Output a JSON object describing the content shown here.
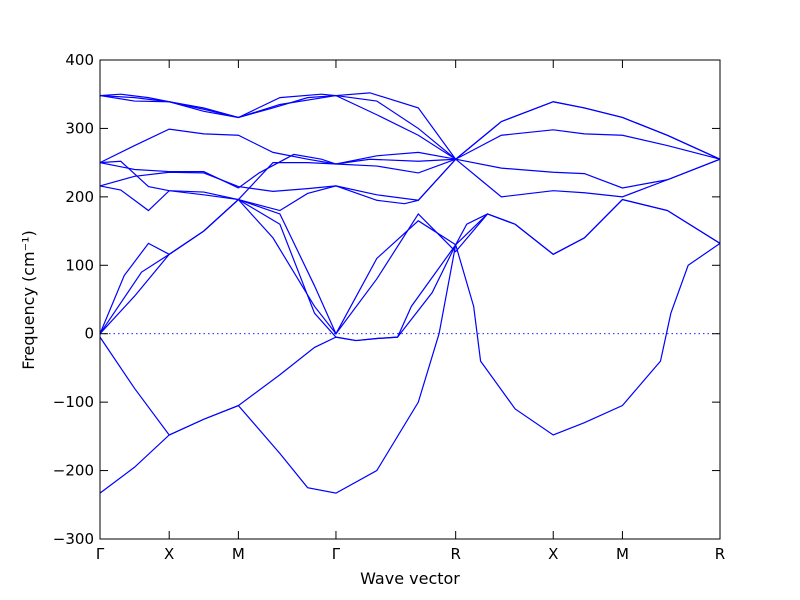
{
  "chart_data": {
    "type": "line",
    "xlabel": "Wave vector",
    "ylabel": "Frequency (cm⁻¹)",
    "ylim": [
      -300,
      400
    ],
    "yticks": [
      -300,
      -200,
      -100,
      0,
      100,
      200,
      300,
      400
    ],
    "xlim": [
      0,
      8.96
    ],
    "x_ticks": [
      {
        "label": "Γ",
        "pos": 0
      },
      {
        "label": "X",
        "pos": 1
      },
      {
        "label": "M",
        "pos": 2
      },
      {
        "label": "Γ",
        "pos": 3.41
      },
      {
        "label": "R",
        "pos": 5.14
      },
      {
        "label": "X",
        "pos": 6.55
      },
      {
        "label": "M",
        "pos": 7.55
      },
      {
        "label": "R",
        "pos": 8.96
      }
    ],
    "zero_line": true,
    "series_color": "#0000ff",
    "series": [
      {
        "points": [
          [
            0,
            348
          ],
          [
            0.5,
            345
          ],
          [
            1,
            339
          ],
          [
            1.5,
            330
          ],
          [
            2,
            316
          ],
          [
            2.5,
            330
          ],
          [
            3.0,
            345
          ],
          [
            3.41,
            348
          ],
          [
            4.0,
            340
          ],
          [
            4.6,
            300
          ],
          [
            5.14,
            255
          ],
          [
            5.8,
            310
          ],
          [
            6.55,
            339
          ],
          [
            7.0,
            330
          ],
          [
            7.55,
            316
          ],
          [
            8.2,
            290
          ],
          [
            8.96,
            255
          ]
        ]
      },
      {
        "points": [
          [
            0,
            348
          ],
          [
            0.3,
            350
          ],
          [
            0.7,
            345
          ],
          [
            1,
            339
          ],
          [
            1.5,
            328
          ],
          [
            2,
            316
          ],
          [
            2.6,
            345
          ],
          [
            3.2,
            350
          ],
          [
            3.41,
            348
          ],
          [
            3.9,
            352
          ],
          [
            4.6,
            330
          ],
          [
            5.14,
            255
          ],
          [
            5.8,
            310
          ],
          [
            6.55,
            339
          ],
          [
            7.0,
            330
          ],
          [
            7.55,
            316
          ],
          [
            8.2,
            290
          ],
          [
            8.96,
            255
          ]
        ]
      },
      {
        "points": [
          [
            0,
            348
          ],
          [
            0.5,
            340
          ],
          [
            1,
            339
          ],
          [
            1.5,
            325
          ],
          [
            2,
            316
          ],
          [
            2.6,
            335
          ],
          [
            3.41,
            348
          ],
          [
            4.0,
            320
          ],
          [
            4.6,
            290
          ],
          [
            5.14,
            255
          ],
          [
            5.8,
            290
          ],
          [
            6.55,
            298
          ],
          [
            7.0,
            292
          ],
          [
            7.55,
            290
          ],
          [
            8.2,
            275
          ],
          [
            8.96,
            255
          ]
        ]
      },
      {
        "points": [
          [
            0,
            250
          ],
          [
            0.5,
            275
          ],
          [
            1,
            299
          ],
          [
            1.5,
            292
          ],
          [
            2,
            290
          ],
          [
            2.5,
            265
          ],
          [
            3.0,
            255
          ],
          [
            3.41,
            248
          ],
          [
            4.0,
            260
          ],
          [
            4.6,
            265
          ],
          [
            5.14,
            255
          ],
          [
            5.8,
            242
          ],
          [
            6.55,
            236
          ],
          [
            7.0,
            234
          ],
          [
            7.55,
            213
          ],
          [
            8.2,
            225
          ],
          [
            8.96,
            255
          ]
        ]
      },
      {
        "points": [
          [
            0,
            250
          ],
          [
            0.5,
            240
          ],
          [
            1,
            237
          ],
          [
            1.5,
            237
          ],
          [
            2,
            213
          ],
          [
            2.3,
            235
          ],
          [
            2.8,
            262
          ],
          [
            3.2,
            255
          ],
          [
            3.41,
            248
          ],
          [
            3.9,
            255
          ],
          [
            4.6,
            252
          ],
          [
            5.14,
            255
          ],
          [
            5.5,
            225
          ],
          [
            5.8,
            200
          ],
          [
            6.55,
            209
          ],
          [
            7.0,
            206
          ],
          [
            7.55,
            200
          ],
          [
            8.2,
            225
          ],
          [
            8.96,
            255
          ]
        ]
      },
      {
        "points": [
          [
            0,
            250
          ],
          [
            0.3,
            252
          ],
          [
            0.7,
            215
          ],
          [
            1,
            209
          ],
          [
            1.5,
            207
          ],
          [
            2,
            196
          ],
          [
            2.5,
            250
          ],
          [
            3.0,
            250
          ],
          [
            3.41,
            248
          ],
          [
            4.0,
            245
          ],
          [
            4.6,
            235
          ],
          [
            5.14,
            255
          ]
        ]
      },
      {
        "points": [
          [
            0,
            216
          ],
          [
            0.5,
            230
          ],
          [
            1,
            236
          ],
          [
            1.5,
            235
          ],
          [
            2,
            215
          ],
          [
            2.5,
            208
          ],
          [
            3.0,
            212
          ],
          [
            3.41,
            216
          ],
          [
            4.0,
            203
          ],
          [
            4.6,
            195
          ],
          [
            5.14,
            255
          ]
        ]
      },
      {
        "points": [
          [
            0,
            216
          ],
          [
            0.3,
            210
          ],
          [
            0.7,
            180
          ],
          [
            1,
            209
          ],
          [
            1.5,
            203
          ],
          [
            2,
            196
          ],
          [
            2.6,
            180
          ],
          [
            3.0,
            205
          ],
          [
            3.41,
            216
          ],
          [
            4.0,
            195
          ],
          [
            4.4,
            190
          ],
          [
            4.6,
            195
          ],
          [
            5.14,
            255
          ]
        ]
      },
      {
        "points": [
          [
            0,
            0
          ],
          [
            0.35,
            85
          ],
          [
            0.7,
            132
          ],
          [
            1,
            116
          ],
          [
            1.5,
            150
          ],
          [
            2,
            196
          ],
          [
            2.6,
            175
          ],
          [
            3.1,
            70
          ],
          [
            3.41,
            0
          ],
          [
            4.0,
            110
          ],
          [
            4.6,
            165
          ],
          [
            5.14,
            130
          ],
          [
            5.4,
            40
          ],
          [
            5.5,
            -40
          ],
          [
            6.0,
            -110
          ],
          [
            6.55,
            -148
          ],
          [
            7.0,
            -130
          ],
          [
            7.55,
            -105
          ],
          [
            8.1,
            -40
          ],
          [
            8.25,
            30
          ],
          [
            8.5,
            100
          ],
          [
            8.96,
            132
          ]
        ]
      },
      {
        "points": [
          [
            0,
            0
          ],
          [
            0.5,
            55
          ],
          [
            1,
            116
          ],
          [
            1.5,
            150
          ],
          [
            2,
            196
          ],
          [
            2.5,
            140
          ],
          [
            3.1,
            40
          ],
          [
            3.41,
            0
          ],
          [
            4.0,
            80
          ],
          [
            4.6,
            175
          ],
          [
            5.14,
            120
          ],
          [
            5.6,
            175
          ],
          [
            6.0,
            160
          ],
          [
            6.55,
            116
          ],
          [
            7.0,
            140
          ],
          [
            7.55,
            196
          ],
          [
            8.2,
            180
          ],
          [
            8.96,
            132
          ]
        ]
      },
      {
        "points": [
          [
            0,
            0
          ],
          [
            0.6,
            90
          ],
          [
            1,
            116
          ],
          [
            1.5,
            150
          ],
          [
            2,
            196
          ],
          [
            2.6,
            160
          ],
          [
            3.1,
            30
          ],
          [
            3.41,
            -5
          ],
          [
            3.7,
            -10
          ],
          [
            4.0,
            -7
          ],
          [
            4.3,
            -5
          ],
          [
            4.5,
            40
          ],
          [
            5.14,
            130
          ],
          [
            5.6,
            175
          ],
          [
            6.0,
            160
          ],
          [
            6.55,
            116
          ],
          [
            7.0,
            140
          ],
          [
            7.55,
            196
          ],
          [
            8.2,
            180
          ],
          [
            8.96,
            132
          ]
        ]
      },
      {
        "points": [
          [
            0,
            -5
          ],
          [
            0.5,
            -80
          ],
          [
            1,
            -148
          ],
          [
            1.5,
            -125
          ],
          [
            2,
            -105
          ],
          [
            2.6,
            -60
          ],
          [
            3.1,
            -20
          ],
          [
            3.41,
            -5
          ],
          [
            3.7,
            -10
          ],
          [
            4.0,
            -7
          ],
          [
            4.3,
            -5
          ],
          [
            4.8,
            60
          ],
          [
            5.14,
            130
          ],
          [
            5.3,
            160
          ],
          [
            5.6,
            175
          ]
        ]
      },
      {
        "points": [
          [
            0,
            -233
          ],
          [
            0.5,
            -195
          ],
          [
            1,
            -148
          ],
          [
            1.5,
            -125
          ],
          [
            2,
            -105
          ],
          [
            2.6,
            -175
          ],
          [
            3.0,
            -225
          ],
          [
            3.41,
            -233
          ],
          [
            4.0,
            -200
          ],
          [
            4.6,
            -100
          ],
          [
            4.9,
            0
          ],
          [
            5.14,
            130
          ]
        ]
      }
    ]
  }
}
